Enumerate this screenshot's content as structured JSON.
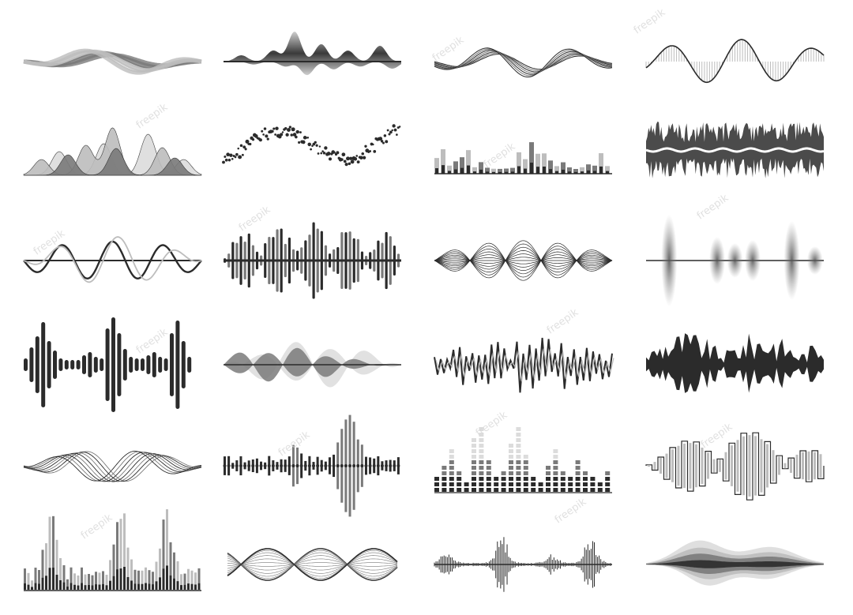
{
  "title": "",
  "watermark": {
    "text": "freepik"
  },
  "palette": {
    "dark": "#2b2b2b",
    "mid": "#7a7a7a",
    "light": "#bdbdbd",
    "pale": "#dcdcdc",
    "bg": "#ffffff"
  },
  "grid": {
    "columns": 4,
    "rows": 6
  },
  "icons": [
    {
      "name": "flowing-ribbon-wave-icon",
      "style": "ribbon"
    },
    {
      "name": "gradient-peaks-wave-icon",
      "style": "gradient-peaks"
    },
    {
      "name": "parallel-lines-wave-icon",
      "style": "parallel-lines"
    },
    {
      "name": "hatched-sine-wave-icon",
      "style": "hatched-sine"
    },
    {
      "name": "layered-mountain-wave-icon",
      "style": "mountains"
    },
    {
      "name": "dotted-particle-wave-icon",
      "style": "dots"
    },
    {
      "name": "equalizer-bars-icon",
      "style": "eq-bars"
    },
    {
      "name": "noisy-band-wave-icon",
      "style": "noisy-band"
    },
    {
      "name": "overlapping-sine-lines-icon",
      "style": "overlap-sines"
    },
    {
      "name": "mirrored-bell-wave-icon",
      "style": "mirrored-bells"
    },
    {
      "name": "string-envelope-wave-icon",
      "style": "string-envelope"
    },
    {
      "name": "blurred-spikes-wave-icon",
      "style": "blur-spikes"
    },
    {
      "name": "rounded-bars-soundwave-icon",
      "style": "rounded-bars"
    },
    {
      "name": "double-mirror-wave-icon",
      "style": "double-mirror"
    },
    {
      "name": "zigzag-sharp-wave-icon",
      "style": "zigzag"
    },
    {
      "name": "dense-spiky-wave-icon",
      "style": "dense-spikes"
    },
    {
      "name": "braided-threads-wave-icon",
      "style": "threads"
    },
    {
      "name": "dotted-bars-soundwave-icon",
      "style": "dot-bars"
    },
    {
      "name": "dotted-equalizer-columns-icon",
      "style": "dot-columns"
    },
    {
      "name": "square-pulse-wave-icon",
      "style": "square-pulse"
    },
    {
      "name": "stacked-equalizer-icon",
      "style": "stacked-eq"
    },
    {
      "name": "twisted-helix-wave-icon",
      "style": "helix"
    },
    {
      "name": "burst-pulses-wave-icon",
      "style": "bursts"
    },
    {
      "name": "soft-blob-wave-icon",
      "style": "blob"
    }
  ]
}
